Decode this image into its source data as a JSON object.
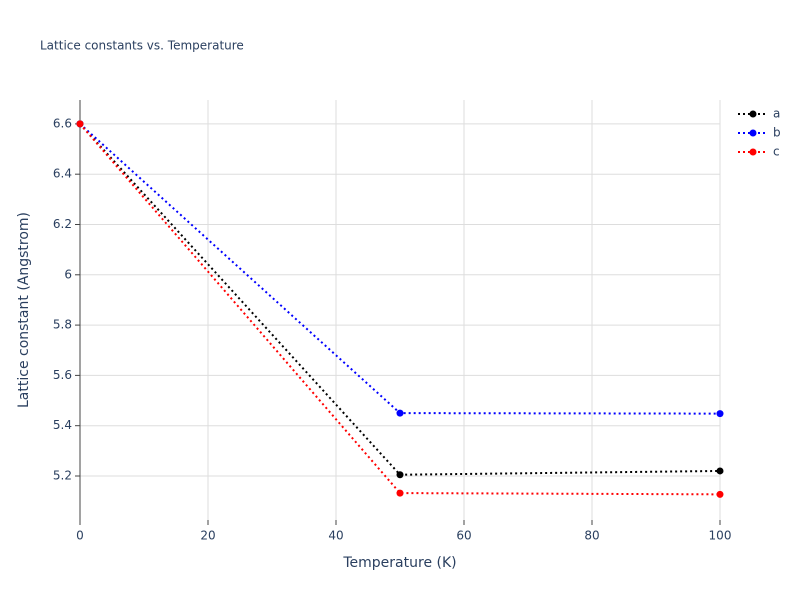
{
  "chart_data": {
    "type": "line",
    "title": "Lattice constants vs. Temperature",
    "x_label": "Temperature (K)",
    "y_label": "Lattice constant (Angstrom)",
    "x": [
      0,
      50,
      100
    ],
    "series": [
      {
        "name": "a",
        "color": "#000000",
        "values": [
          6.6,
          5.205,
          5.22
        ]
      },
      {
        "name": "b",
        "color": "#0000ff",
        "values": [
          6.6,
          5.45,
          5.448
        ]
      },
      {
        "name": "c",
        "color": "#ff0000",
        "values": [
          6.6,
          5.132,
          5.127
        ]
      }
    ],
    "xlim": [
      0,
      100
    ],
    "xticks": [
      0,
      20,
      40,
      60,
      80,
      100
    ],
    "ylim": [
      5.025,
      6.695
    ],
    "yticks": [
      5.2,
      5.4,
      5.6,
      5.8,
      6,
      6.2,
      6.4,
      6.6
    ],
    "grid": true,
    "legend": "top-right"
  }
}
